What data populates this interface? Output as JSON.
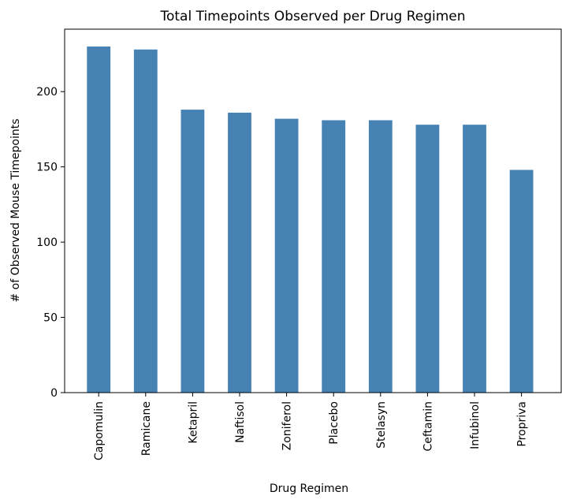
{
  "chart_data": {
    "type": "bar",
    "title": "Total Timepoints Observed per Drug Regimen",
    "xlabel": "Drug Regimen",
    "ylabel": "# of Observed Mouse Timepoints",
    "categories": [
      "Capomulin",
      "Ramicane",
      "Ketapril",
      "Naftisol",
      "Zoniferol",
      "Placebo",
      "Stelasyn",
      "Ceftamin",
      "Infubinol",
      "Propriva"
    ],
    "values": [
      230,
      228,
      188,
      186,
      182,
      181,
      181,
      178,
      178,
      148
    ],
    "ylim": [
      0,
      241.5
    ],
    "yticks": [
      0,
      50,
      100,
      150,
      200
    ],
    "grid": false,
    "bar_color": "#4682b4"
  }
}
